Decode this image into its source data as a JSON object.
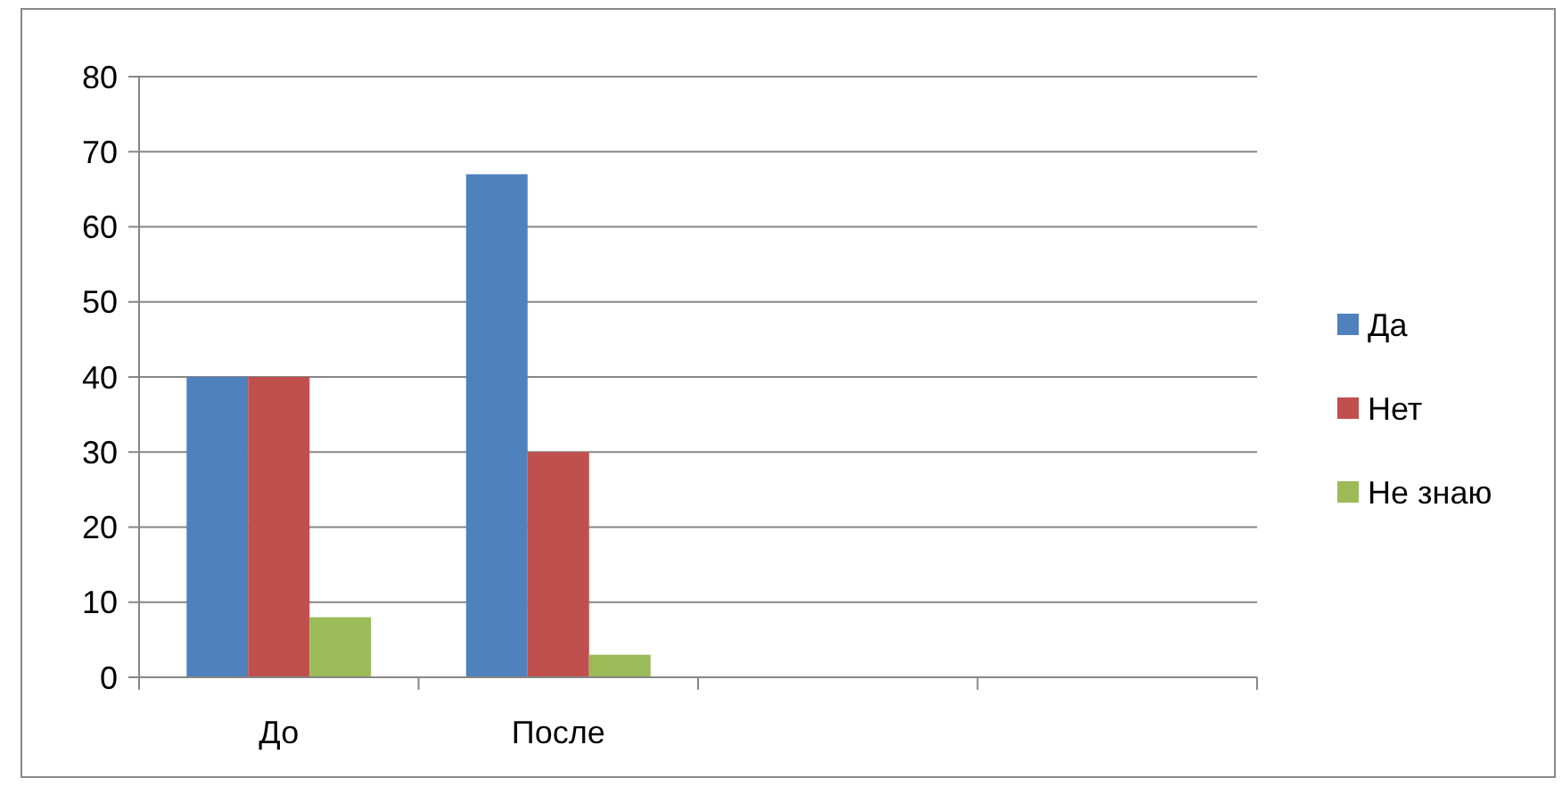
{
  "chart_data": {
    "type": "bar",
    "categories": [
      "До",
      "После",
      null,
      null
    ],
    "series": [
      {
        "name": "Да",
        "color": "#4f81bd",
        "values": [
          40,
          67,
          null,
          null
        ]
      },
      {
        "name": "Нет",
        "color": "#c0504d",
        "values": [
          40,
          30,
          null,
          null
        ]
      },
      {
        "name": "Не знаю",
        "color": "#9bbb59",
        "values": [
          8,
          3,
          null,
          null
        ]
      }
    ],
    "ylim": [
      0,
      80
    ],
    "yticks": [
      0,
      10,
      20,
      30,
      40,
      50,
      60,
      70,
      80
    ],
    "grid": "y",
    "legend": "right"
  }
}
